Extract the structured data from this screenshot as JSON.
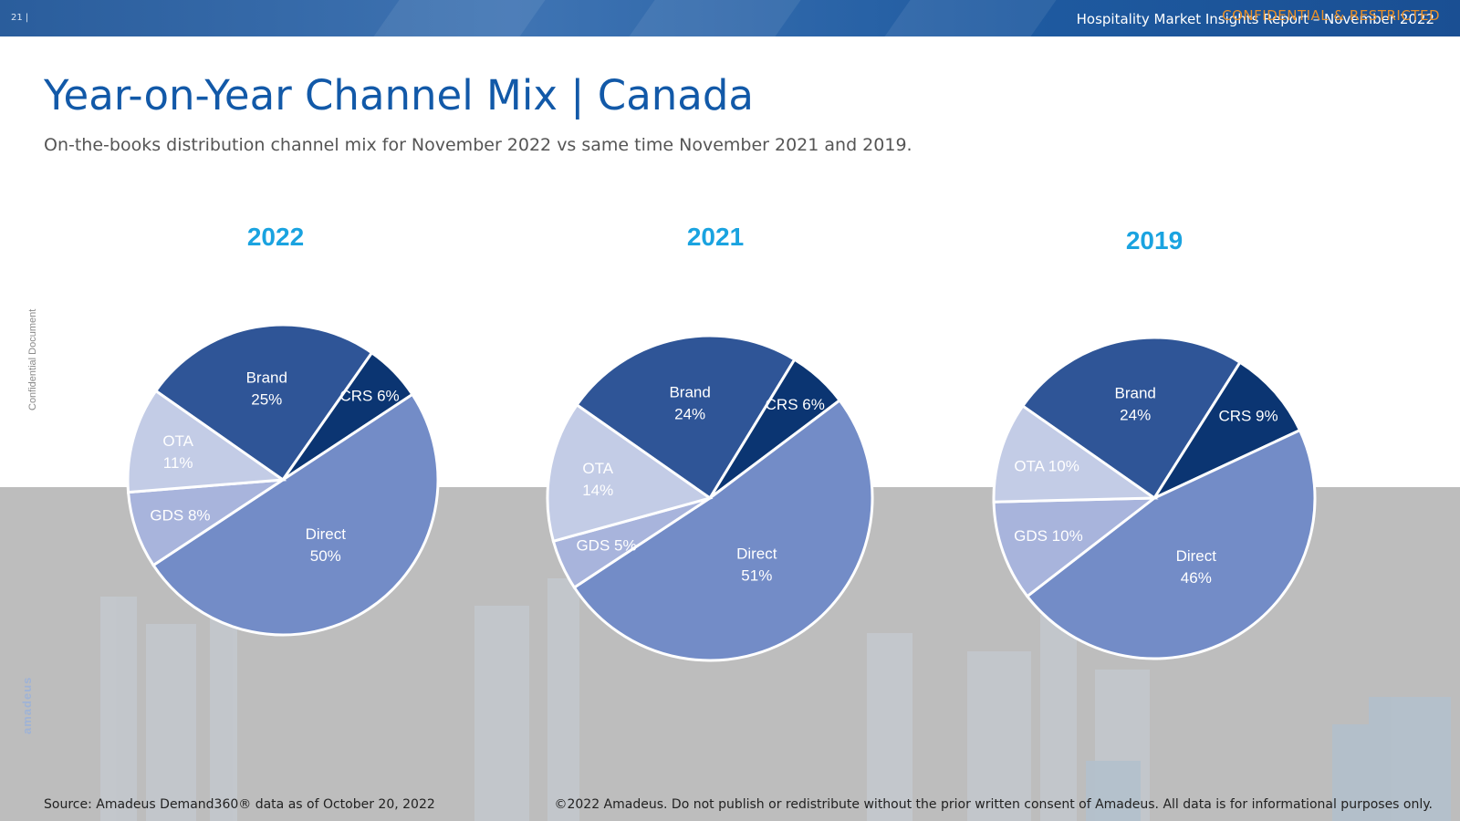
{
  "header": {
    "page_number": "21 |",
    "report_title": "Hospitality Market Insights Report – November 2022",
    "confidential": "CONFIDENTIAL & RESTRICTED"
  },
  "title": "Year-on-Year Channel Mix | Canada",
  "subtitle": "On-the-books distribution channel mix for November 2022 vs same time November 2021 and 2019.",
  "side_label": "Confidential Document",
  "side_logo": "amadeus",
  "footer": {
    "source": "Source: Amadeus Demand360® data as of October 20, 2022",
    "copyright": "©2022 Amadeus. Do not publish or redistribute without the prior written consent of Amadeus. All data is for informational purposes only."
  },
  "colors": {
    "Brand": "#2f5597",
    "CRS": "#0b3572",
    "Direct": "#738cc7",
    "GDS": "#a8b4dc",
    "OTA": "#c3cce6",
    "year_label": "#1aa3e0",
    "title": "#1259a8"
  },
  "chart_data": [
    {
      "type": "pie",
      "title": "2022",
      "slices": [
        {
          "name": "Brand",
          "value": 25,
          "label": [
            "Brand",
            "25%"
          ]
        },
        {
          "name": "CRS",
          "value": 6,
          "label": [
            "CRS 6%"
          ]
        },
        {
          "name": "Direct",
          "value": 50,
          "label": [
            "Direct",
            "50%"
          ]
        },
        {
          "name": "GDS",
          "value": 8,
          "label": [
            "GDS 8%"
          ]
        },
        {
          "name": "OTA",
          "value": 11,
          "label": [
            "OTA",
            "11%"
          ]
        }
      ]
    },
    {
      "type": "pie",
      "title": "2021",
      "slices": [
        {
          "name": "Brand",
          "value": 24,
          "label": [
            "Brand",
            "24%"
          ]
        },
        {
          "name": "CRS",
          "value": 6,
          "label": [
            "CRS 6%"
          ]
        },
        {
          "name": "Direct",
          "value": 51,
          "label": [
            "Direct",
            "51%"
          ]
        },
        {
          "name": "GDS",
          "value": 5,
          "label": [
            "GDS 5%"
          ]
        },
        {
          "name": "OTA",
          "value": 14,
          "label": [
            "OTA",
            "14%"
          ]
        }
      ]
    },
    {
      "type": "pie",
      "title": "2019",
      "slices": [
        {
          "name": "Brand",
          "value": 24,
          "label": [
            "Brand",
            "24%"
          ]
        },
        {
          "name": "CRS",
          "value": 9,
          "label": [
            "CRS 9%"
          ]
        },
        {
          "name": "Direct",
          "value": 46,
          "label": [
            "Direct",
            "46%"
          ]
        },
        {
          "name": "GDS",
          "value": 10,
          "label": [
            "GDS 10%"
          ]
        },
        {
          "name": "OTA",
          "value": 10,
          "label": [
            "OTA 10%"
          ]
        }
      ]
    }
  ]
}
